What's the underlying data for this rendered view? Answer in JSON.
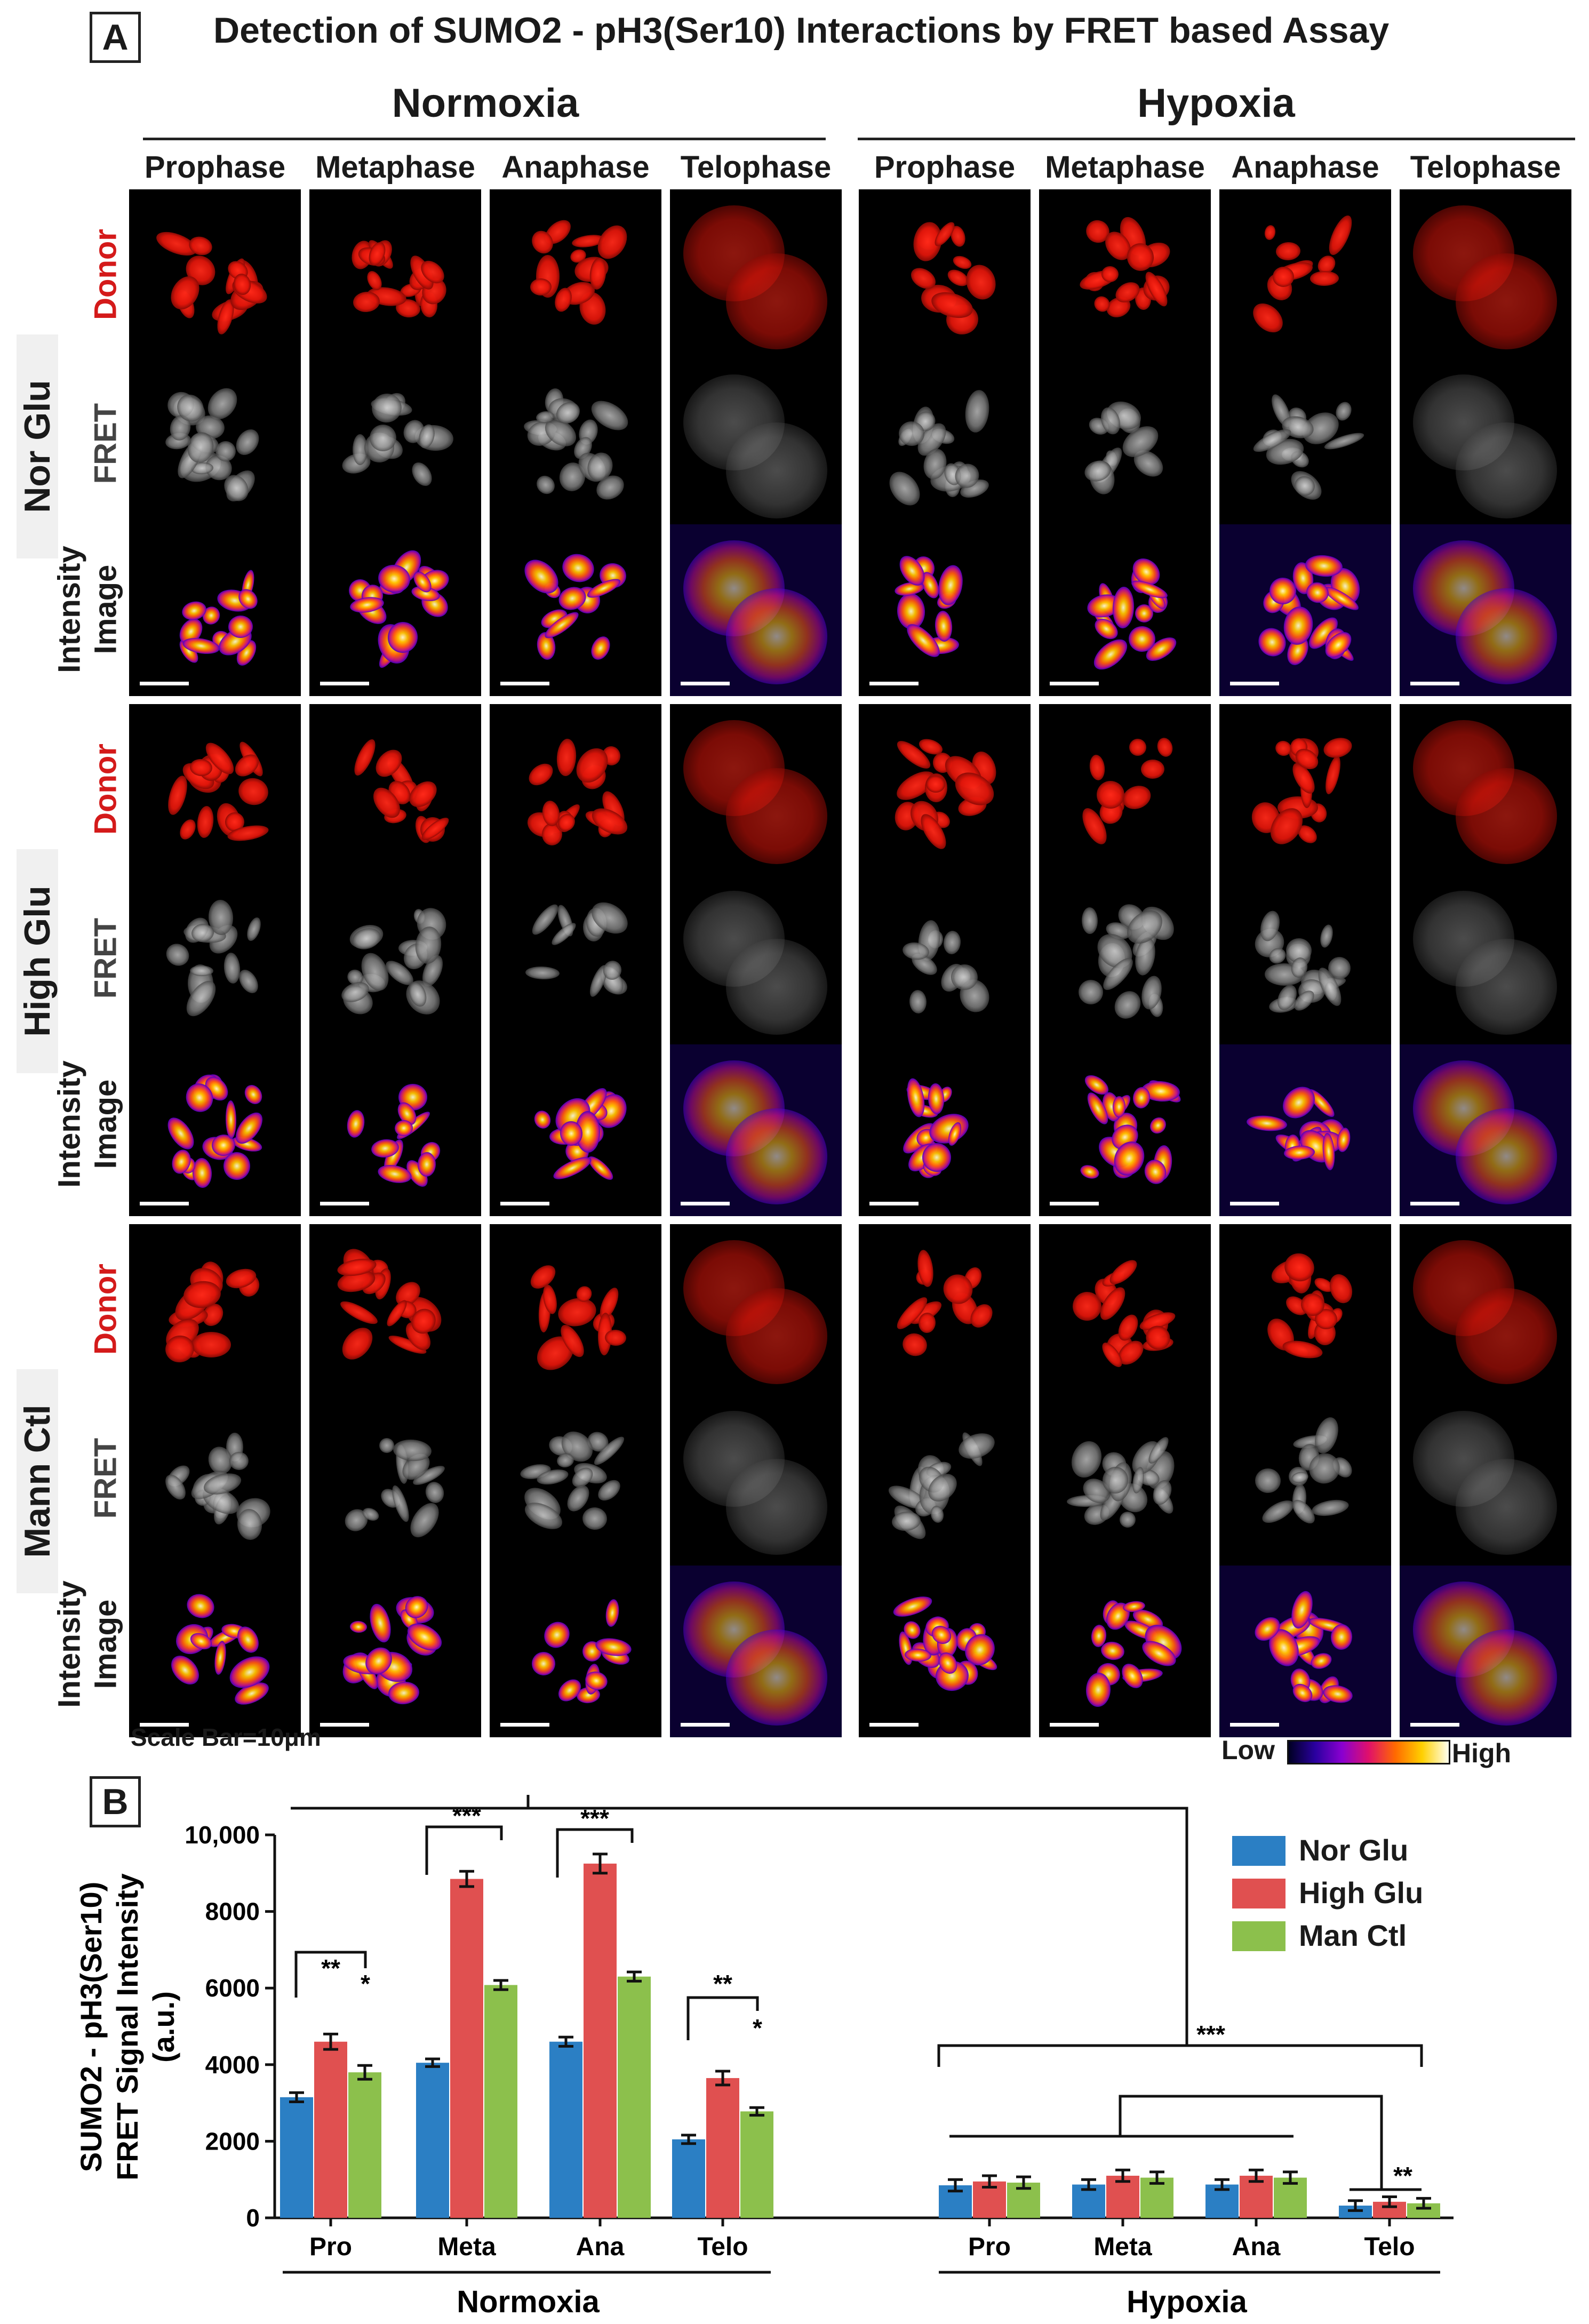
{
  "panel_a": {
    "letter": "A",
    "title": "Detection of SUMO2 - pH3(Ser10) Interactions by FRET based Assay",
    "conditions": [
      "Normoxia",
      "Hypoxia"
    ],
    "phases": [
      "Prophase",
      "Metaphase",
      "Anaphase",
      "Telophase",
      "Prophase",
      "Metaphase",
      "Anaphase",
      "Telophase"
    ],
    "groups": [
      "Nor Glu",
      "High Glu",
      "Mann Ctl"
    ],
    "channels": {
      "donor": "Donor",
      "fret": "FRET",
      "intensity_line1": "Intensity",
      "intensity_line2": "Image"
    },
    "scale_bar_text": "Scale Bar=10μm",
    "lut_low": "Low",
    "lut_high": "High",
    "colors": {
      "donor_label": "#d41a1a",
      "fret_label": "#444444"
    }
  },
  "panel_b": {
    "letter": "B",
    "legend": [
      {
        "name": "Nor Glu",
        "color": "#2b7fc4"
      },
      {
        "name": "High Glu",
        "color": "#e05050"
      },
      {
        "name": "Man Ctl",
        "color": "#8cc04c"
      }
    ]
  },
  "chart_data": {
    "type": "bar",
    "ylabel_lines": [
      "SUMO2 - pH3(Ser10)",
      "FRET Signal Intensity",
      "(a.u.)"
    ],
    "ylim": [
      0,
      10000
    ],
    "yticks": [
      "0",
      "2000",
      "4000",
      "6000",
      "8000",
      "10,000"
    ],
    "groups": [
      "Normoxia",
      "Hypoxia"
    ],
    "categories": [
      "Pro",
      "Meta",
      "Ana",
      "Telo",
      "Pro",
      "Meta",
      "Ana",
      "Telo"
    ],
    "series": [
      {
        "name": "Nor Glu",
        "values": [
          3150,
          4050,
          4600,
          2050,
          850,
          870,
          870,
          320
        ],
        "errors": [
          120,
          100,
          120,
          110,
          150,
          130,
          130,
          130
        ]
      },
      {
        "name": "High Glu",
        "values": [
          4600,
          8850,
          9250,
          3650,
          950,
          1100,
          1100,
          420
        ],
        "errors": [
          200,
          200,
          250,
          180,
          150,
          150,
          150,
          130
        ]
      },
      {
        "name": "Man Ctl",
        "values": [
          3800,
          6080,
          6300,
          2780,
          920,
          1050,
          1050,
          380
        ],
        "errors": [
          180,
          120,
          120,
          100,
          150,
          150,
          150,
          130
        ]
      }
    ],
    "annotations": [
      "**",
      "*",
      "***",
      "***",
      "**",
      "*",
      "***",
      "**"
    ]
  }
}
